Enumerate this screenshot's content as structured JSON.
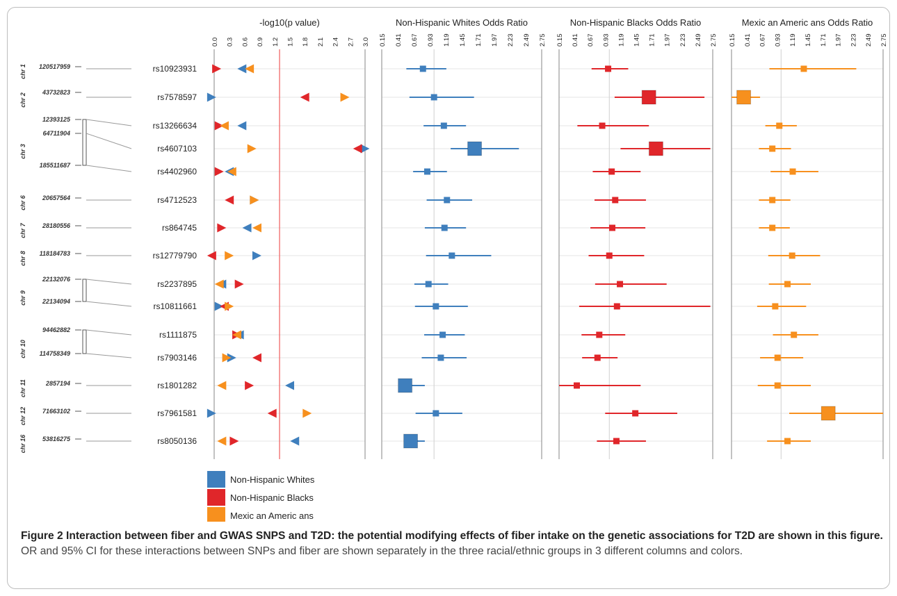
{
  "figure": {
    "panel_titles": [
      "-log10(p value)",
      "Non-Hispanic Whites Odds Ratio",
      "Non-Hispanic Blacks Odds Ratio",
      "Mexic an Americ ans Odds Ratio"
    ],
    "pval_ticks": [
      "0.0",
      "0.3",
      "0.6",
      "0.9",
      "1.2",
      "1.5",
      "1.8",
      "2.1",
      "2.4",
      "2.7",
      "3.0"
    ],
    "or_ticks": [
      "0.15",
      "0.41",
      "0.67",
      "0.93",
      "1.19",
      "1.45",
      "1.71",
      "1.97",
      "2.23",
      "2.49",
      "2.75"
    ],
    "colors": {
      "whites": "#3f7fbd",
      "blacks": "#e0262a",
      "mexican": "#f7901e",
      "threshold": "#ef5b5b",
      "axis": "#999999"
    },
    "legend": [
      {
        "key": "whites",
        "label": "Non-Hispanic Whites"
      },
      {
        "key": "blacks",
        "label": "Non-Hispanic Blacks"
      },
      {
        "key": "mexican",
        "label": "Mexic an Americ ans"
      }
    ]
  },
  "chromosomes": [
    {
      "chr": "chr 1",
      "positions": [
        "120517959"
      ]
    },
    {
      "chr": "chr 2",
      "positions": [
        "43732823"
      ]
    },
    {
      "chr": "chr 3",
      "positions": [
        "12393125",
        "64711904",
        "185511687"
      ]
    },
    {
      "chr": "chr 6",
      "positions": [
        "20657564"
      ]
    },
    {
      "chr": "chr 7",
      "positions": [
        "28180556"
      ]
    },
    {
      "chr": "chr 8",
      "positions": [
        "118184783"
      ]
    },
    {
      "chr": "chr 9",
      "positions": [
        "22132076",
        "22134094"
      ]
    },
    {
      "chr": "chr 10",
      "positions": [
        "94462882",
        "114758349"
      ]
    },
    {
      "chr": "chr 11",
      "positions": [
        "2857194"
      ]
    },
    {
      "chr": "chr 12",
      "positions": [
        "71663102"
      ]
    },
    {
      "chr": "chr 16",
      "positions": [
        "53816275"
      ]
    }
  ],
  "chart_data": {
    "type": "scatter",
    "threshold_pvalue": 1.3,
    "pval_range": [
      0,
      3.0
    ],
    "or_range": [
      0.15,
      2.75
    ],
    "snps": [
      "rs10923931",
      "rs7578597",
      "rs13266634",
      "rs4607103",
      "rs4402960",
      "rs4712523",
      "rs864745",
      "rs12779790",
      "rs2237895",
      "rs10811661",
      "rs1111875",
      "rs7903146",
      "rs1801282",
      "rs7961581",
      "rs8050136"
    ],
    "series": [
      {
        "name": "Non-Hispanic Whites",
        "neglog10p": [
          0.55,
          -0.05,
          0.55,
          3.0,
          0.3,
          0.8,
          0.65,
          0.85,
          0.15,
          0.1,
          0.5,
          0.35,
          1.5,
          -0.05,
          1.6
        ],
        "or": [
          0.82,
          1.0,
          1.16,
          1.66,
          0.89,
          1.21,
          1.17,
          1.29,
          0.91,
          1.03,
          1.14,
          1.11,
          0.53,
          1.03,
          0.62
        ],
        "ci_low": [
          0.55,
          0.6,
          0.83,
          1.27,
          0.66,
          0.88,
          0.85,
          0.87,
          0.68,
          0.69,
          0.84,
          0.8,
          0.43,
          0.7,
          0.53
        ],
        "ci_high": [
          1.2,
          1.65,
          1.52,
          2.38,
          1.21,
          1.62,
          1.52,
          1.93,
          1.23,
          1.55,
          1.5,
          1.53,
          0.85,
          1.46,
          0.85
        ],
        "weight": [
          1,
          1,
          1,
          3,
          1,
          1,
          1,
          1,
          1,
          1,
          1,
          1,
          3,
          1,
          3
        ]
      },
      {
        "name": "Non-Hispanic Blacks",
        "neglog10p": [
          0.05,
          1.8,
          0.1,
          2.85,
          0.1,
          0.3,
          0.15,
          -0.05,
          0.5,
          0.2,
          0.45,
          0.85,
          0.7,
          1.15,
          0.4
        ],
        "or": [
          0.98,
          1.67,
          0.88,
          1.79,
          1.04,
          1.1,
          1.05,
          1.0,
          1.18,
          1.13,
          0.83,
          0.8,
          0.45,
          1.44,
          1.12
        ],
        "ci_low": [
          0.7,
          1.09,
          0.46,
          1.19,
          0.72,
          0.75,
          0.68,
          0.65,
          0.76,
          0.49,
          0.53,
          0.54,
          0.15,
          0.93,
          0.79
        ],
        "ci_high": [
          1.32,
          2.61,
          1.67,
          2.71,
          1.53,
          1.62,
          1.61,
          1.59,
          1.97,
          2.71,
          1.27,
          1.14,
          1.53,
          2.15,
          1.62
        ],
        "weight": [
          1,
          3,
          1,
          3,
          1,
          1,
          1,
          1,
          1,
          1,
          1,
          1,
          1,
          1,
          1
        ]
      },
      {
        "name": "Mexic an Americ ans",
        "neglog10p": [
          0.7,
          2.6,
          0.2,
          0.75,
          0.35,
          0.8,
          0.85,
          0.3,
          0.1,
          0.3,
          0.45,
          0.25,
          0.15,
          1.85,
          0.15
        ],
        "or": [
          1.39,
          0.36,
          0.97,
          0.85,
          1.2,
          0.85,
          0.85,
          1.19,
          1.11,
          0.9,
          1.22,
          0.94,
          0.94,
          1.81,
          1.11
        ],
        "ci_low": [
          0.8,
          0.15,
          0.73,
          0.62,
          0.82,
          0.62,
          0.62,
          0.78,
          0.79,
          0.59,
          0.86,
          0.64,
          0.6,
          1.14,
          0.76
        ],
        "ci_high": [
          2.29,
          0.64,
          1.27,
          1.17,
          1.64,
          1.16,
          1.15,
          1.67,
          1.51,
          1.43,
          1.64,
          1.38,
          1.51,
          2.75,
          1.51
        ],
        "weight": [
          1,
          3,
          1,
          1,
          1,
          1,
          1,
          1,
          1,
          1,
          1,
          1,
          1,
          3,
          1
        ]
      }
    ]
  },
  "caption": {
    "lead": "Figure 2 Interaction between fiber and GWAS SNPS and T2D: the potential modifying effects of fiber intake on the genetic associations for T2D are shown in this figure.",
    "body": " OR and 95% CI for these interactions between SNPs and fiber are shown separately in the three racial/ethnic groups in 3 different columns and colors."
  }
}
